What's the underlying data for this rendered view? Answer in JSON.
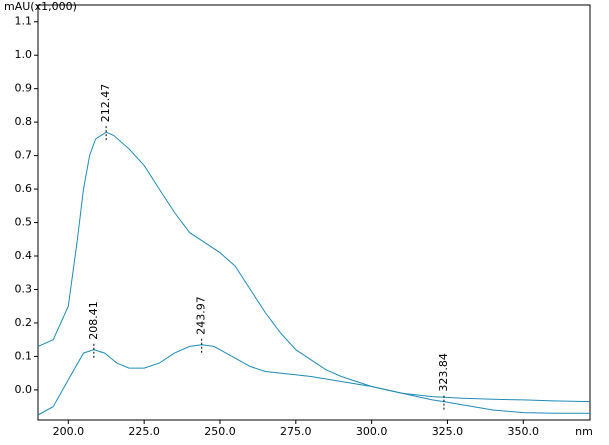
{
  "chart_data": {
    "type": "line",
    "y_label": "mAU(x1,000)",
    "x_label": "nm",
    "xlim": [
      190,
      372
    ],
    "ylim": [
      -0.09,
      1.15
    ],
    "xticks": [
      {
        "value": 200,
        "label": "200.0"
      },
      {
        "value": 225,
        "label": "225.0"
      },
      {
        "value": 250,
        "label": "250.0"
      },
      {
        "value": 275,
        "label": "275.0"
      },
      {
        "value": 300,
        "label": "300.0"
      },
      {
        "value": 325,
        "label": "325.0"
      },
      {
        "value": 350,
        "label": "350.0"
      }
    ],
    "yticks": [
      {
        "value": 0,
        "label": "0.0"
      },
      0.1,
      0.2,
      0.3,
      0.4,
      0.5,
      0.6,
      0.7,
      0.8,
      0.9,
      {
        "value": 1,
        "label": "1.0"
      },
      1.1
    ],
    "series": [
      {
        "color": "#1e8cb8",
        "x": [
          190,
          195,
          200,
          203,
          205,
          207,
          209,
          212.47,
          215,
          220,
          225,
          230,
          235,
          240,
          245,
          250,
          255,
          260,
          265,
          270,
          275,
          280,
          285,
          290,
          295,
          300,
          305,
          310,
          320,
          330,
          340,
          350,
          360,
          372
        ],
        "values": [
          0.13,
          0.15,
          0.25,
          0.45,
          0.6,
          0.7,
          0.75,
          0.77,
          0.76,
          0.72,
          0.67,
          0.6,
          0.53,
          0.47,
          0.44,
          0.41,
          0.37,
          0.3,
          0.23,
          0.17,
          0.12,
          0.09,
          0.06,
          0.04,
          0.025,
          0.01,
          0.0,
          -0.01,
          -0.02,
          -0.025,
          -0.028,
          -0.03,
          -0.033,
          -0.035
        ]
      },
      {
        "color": "#1e8cb8",
        "x": [
          190,
          195,
          200,
          205,
          208.41,
          212,
          216,
          220,
          225,
          230,
          235,
          240,
          243.97,
          248,
          252,
          256,
          260,
          265,
          270,
          280,
          290,
          300,
          310,
          320,
          323.84,
          330,
          340,
          350,
          360,
          372
        ],
        "values": [
          -0.075,
          -0.05,
          0.03,
          0.11,
          0.12,
          0.11,
          0.08,
          0.065,
          0.065,
          0.08,
          0.11,
          0.13,
          0.135,
          0.13,
          0.11,
          0.09,
          0.07,
          0.055,
          0.05,
          0.04,
          0.025,
          0.01,
          -0.01,
          -0.03,
          -0.035,
          -0.045,
          -0.06,
          -0.068,
          -0.07,
          -0.07
        ]
      }
    ],
    "annotations": [
      {
        "x": 212.47,
        "y": 0.77
      },
      {
        "x": 208.41,
        "y": 0.12
      },
      {
        "x": 243.97,
        "y": 0.135
      },
      {
        "x": 323.84,
        "y": -0.035
      }
    ]
  }
}
